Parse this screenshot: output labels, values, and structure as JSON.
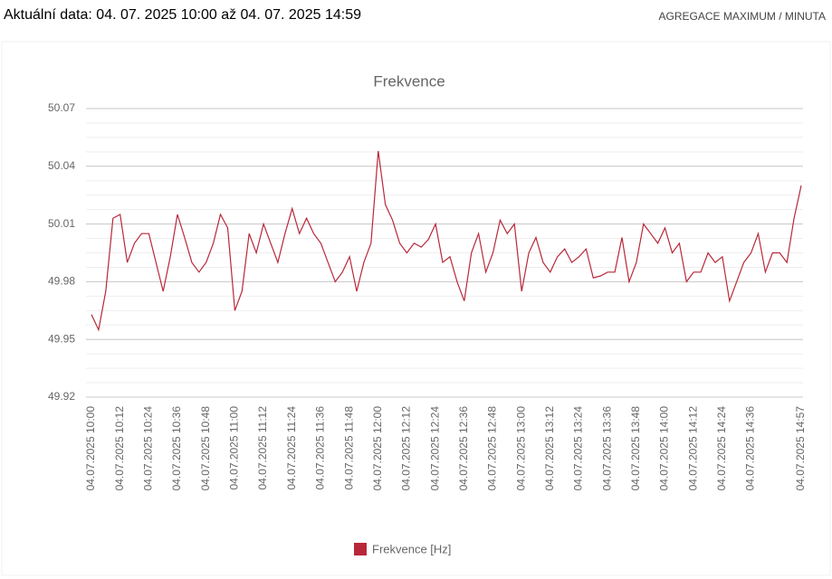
{
  "header": {
    "title": "Aktuální data: 04. 07. 2025 10:00 až 04. 07. 2025 14:59",
    "aggregation": "AGREGACE MAXIMUM / MINUTA"
  },
  "chart_data": {
    "type": "line",
    "title": "Frekvence",
    "categories": [
      "04.07.2025 10:00",
      null,
      null,
      null,
      "04.07.2025 10:12",
      null,
      null,
      null,
      "04.07.2025 10:24",
      null,
      null,
      null,
      "04.07.2025 10:36",
      null,
      null,
      null,
      "04.07.2025 10:48",
      null,
      null,
      null,
      "04.07.2025 11:00",
      null,
      null,
      null,
      "04.07.2025 11:12",
      null,
      null,
      null,
      "04.07.2025 11:24",
      null,
      null,
      null,
      "04.07.2025 11:36",
      null,
      null,
      null,
      "04.07.2025 11:48",
      null,
      null,
      null,
      "04.07.2025 12:00",
      null,
      null,
      null,
      "04.07.2025 12:12",
      null,
      null,
      null,
      "04.07.2025 12:24",
      null,
      null,
      null,
      "04.07.2025 12:36",
      null,
      null,
      null,
      "04.07.2025 12:48",
      null,
      null,
      null,
      "04.07.2025 13:00",
      null,
      null,
      null,
      "04.07.2025 13:12",
      null,
      null,
      null,
      "04.07.2025 13:24",
      null,
      null,
      null,
      "04.07.2025 13:36",
      null,
      null,
      null,
      "04.07.2025 13:48",
      null,
      null,
      null,
      "04.07.2025 14:00",
      null,
      null,
      null,
      "04.07.2025 14:12",
      null,
      null,
      null,
      "04.07.2025 14:24",
      null,
      null,
      null,
      "04.07.2025 14:36",
      null,
      null,
      null,
      null,
      null,
      null,
      "04.07.2025 14:57"
    ],
    "series": [
      {
        "name": "Frekvence [Hz]",
        "color": "#b8283a",
        "values": [
          49.963,
          49.955,
          49.975,
          50.013,
          50.015,
          49.99,
          50.0,
          50.005,
          50.005,
          49.99,
          49.975,
          49.993,
          50.015,
          50.003,
          49.99,
          49.985,
          49.99,
          50.0,
          50.015,
          50.008,
          49.965,
          49.975,
          50.005,
          49.995,
          50.01,
          50.0,
          49.99,
          50.005,
          50.018,
          50.005,
          50.013,
          50.005,
          50.0,
          49.99,
          49.98,
          49.985,
          49.993,
          49.975,
          49.99,
          50.0,
          50.048,
          50.02,
          50.012,
          50.0,
          49.995,
          50.0,
          49.998,
          50.002,
          50.01,
          49.99,
          49.993,
          49.98,
          49.97,
          49.995,
          50.005,
          49.985,
          49.995,
          50.012,
          50.005,
          50.01,
          49.975,
          49.995,
          50.003,
          49.99,
          49.985,
          49.993,
          49.997,
          49.99,
          49.993,
          49.997,
          49.982,
          49.983,
          49.985,
          49.985,
          50.003,
          49.98,
          49.99,
          50.01,
          50.005,
          50.0,
          50.008,
          49.995,
          50.0,
          49.98,
          49.985,
          49.985,
          49.995,
          49.99,
          49.993,
          49.97,
          49.98,
          49.99,
          49.995,
          50.005,
          49.985,
          49.995,
          49.995,
          49.99,
          50.013,
          50.03
        ]
      }
    ],
    "ylim": [
      49.92,
      50.07
    ],
    "yticks": [
      49.92,
      49.95,
      49.98,
      50.01,
      50.04,
      50.07
    ],
    "grid": true
  }
}
